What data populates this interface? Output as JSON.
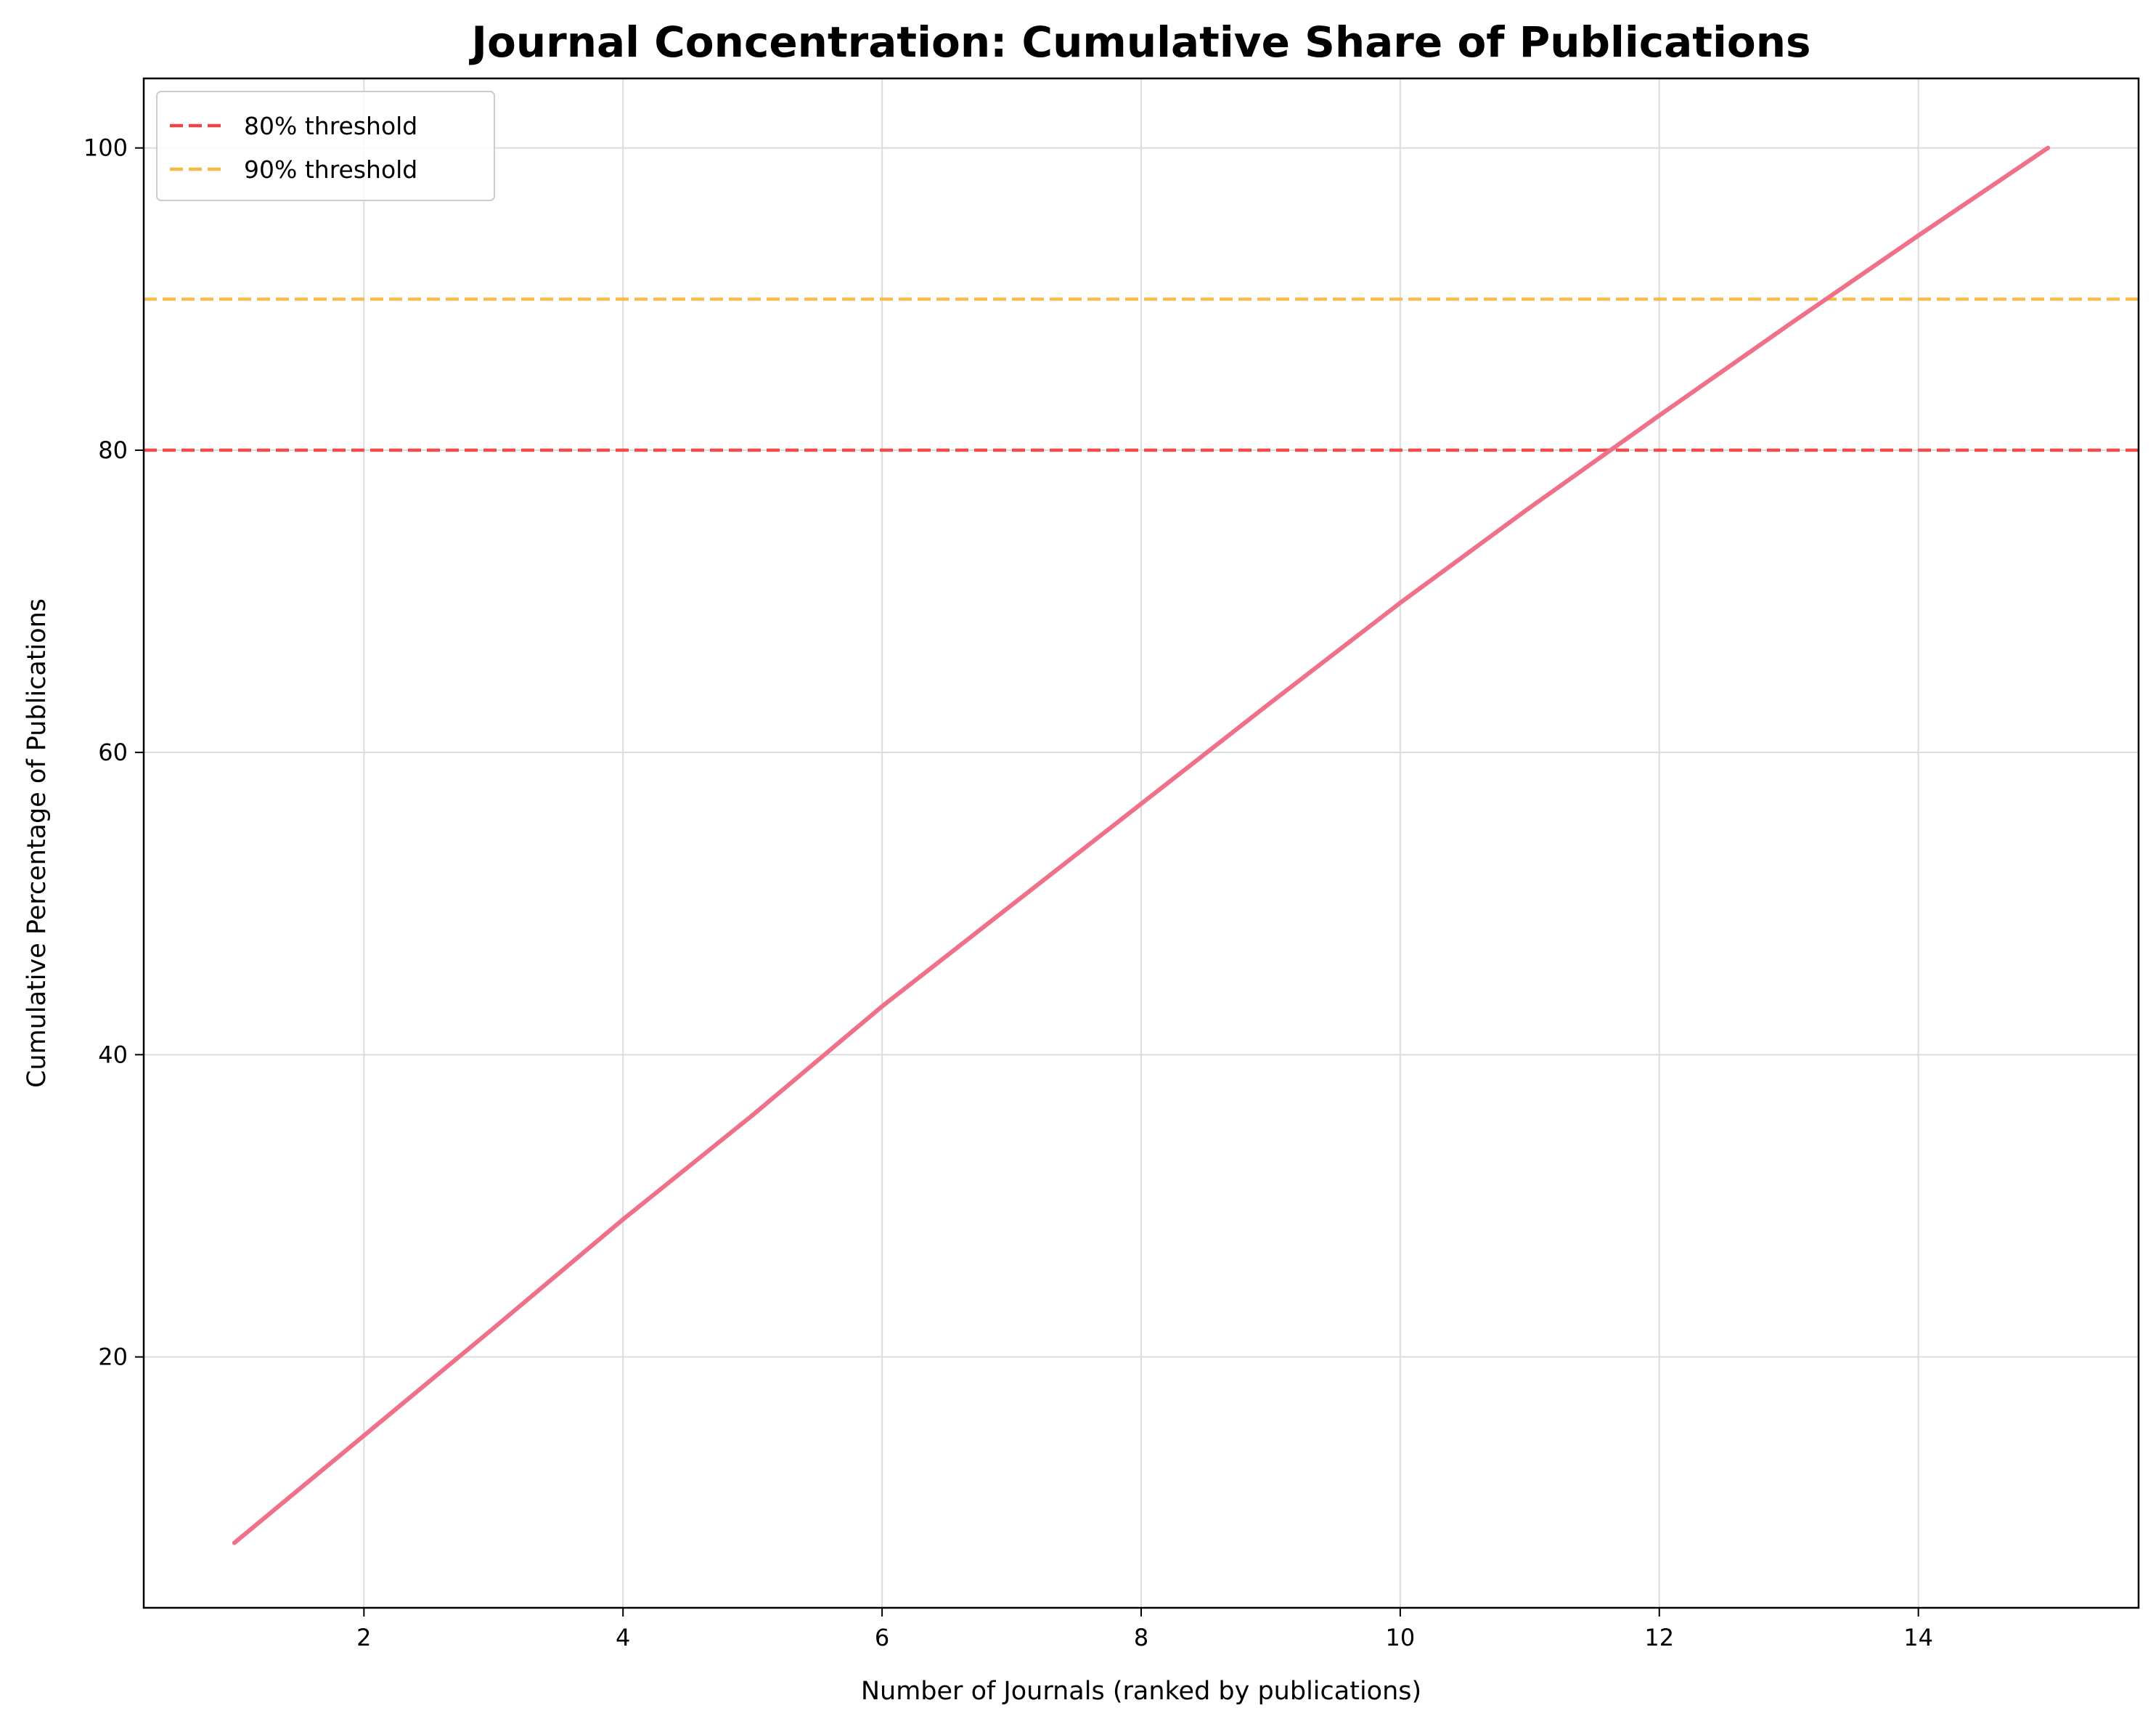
{
  "chart_data": {
    "type": "line",
    "title": "Journal Concentration: Cumulative Share of Publications",
    "xlabel": "Number of Journals (ranked by publications)",
    "ylabel": "Cumulative Percentage of Publications",
    "xlim": [
      0.3,
      15.7
    ],
    "ylim": [
      3.4,
      104.6
    ],
    "xticks": [
      2,
      4,
      6,
      8,
      10,
      12,
      14
    ],
    "yticks": [
      20,
      40,
      60,
      80,
      100
    ],
    "grid": true,
    "legend_position": "top-left",
    "series": [
      {
        "color": "#f0708a",
        "x": [
          1,
          2,
          3,
          4,
          5,
          6,
          7,
          8,
          9,
          10,
          11,
          12,
          13,
          14,
          15
        ],
        "values": [
          7.7,
          14.8,
          21.9,
          29.1,
          36.0,
          43.2,
          49.9,
          56.6,
          63.3,
          69.9,
          76.2,
          82.3,
          88.3,
          94.2,
          100.0
        ]
      }
    ],
    "reference_lines": [
      {
        "name": "80% threshold",
        "y": 80,
        "color": "#f04444",
        "style": "dashed"
      },
      {
        "name": "90% threshold",
        "y": 90,
        "color": "#f7b844",
        "style": "dashed"
      }
    ]
  }
}
